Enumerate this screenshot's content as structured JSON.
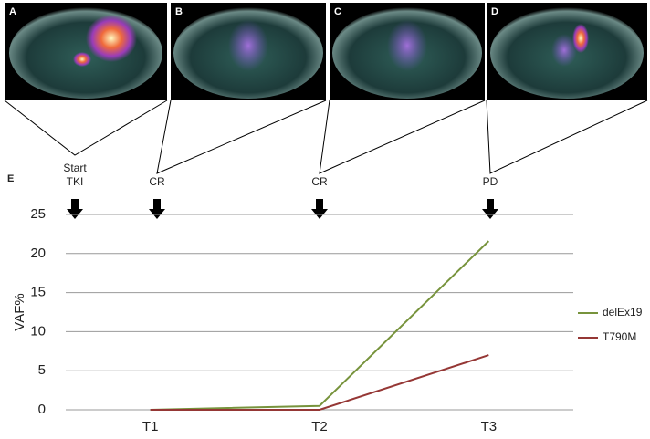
{
  "figure": {
    "panels": [
      "A",
      "B",
      "C",
      "D"
    ],
    "chart_panel": "E",
    "events": [
      "Start TKI",
      "CR",
      "CR",
      "PD"
    ]
  },
  "chart_data": {
    "type": "line",
    "y_label": "VAF%",
    "categories": [
      "T1",
      "T2",
      "T3"
    ],
    "series": [
      {
        "name": "delEx19",
        "color": "#77933c",
        "values": [
          0,
          0.5,
          21.6
        ]
      },
      {
        "name": "T790M",
        "color": "#953735",
        "values": [
          0,
          0,
          7
        ]
      }
    ],
    "ylim": [
      0,
      25
    ],
    "yticks": [
      0,
      5,
      10,
      15,
      20,
      25
    ],
    "grid": true,
    "legend": "right"
  }
}
